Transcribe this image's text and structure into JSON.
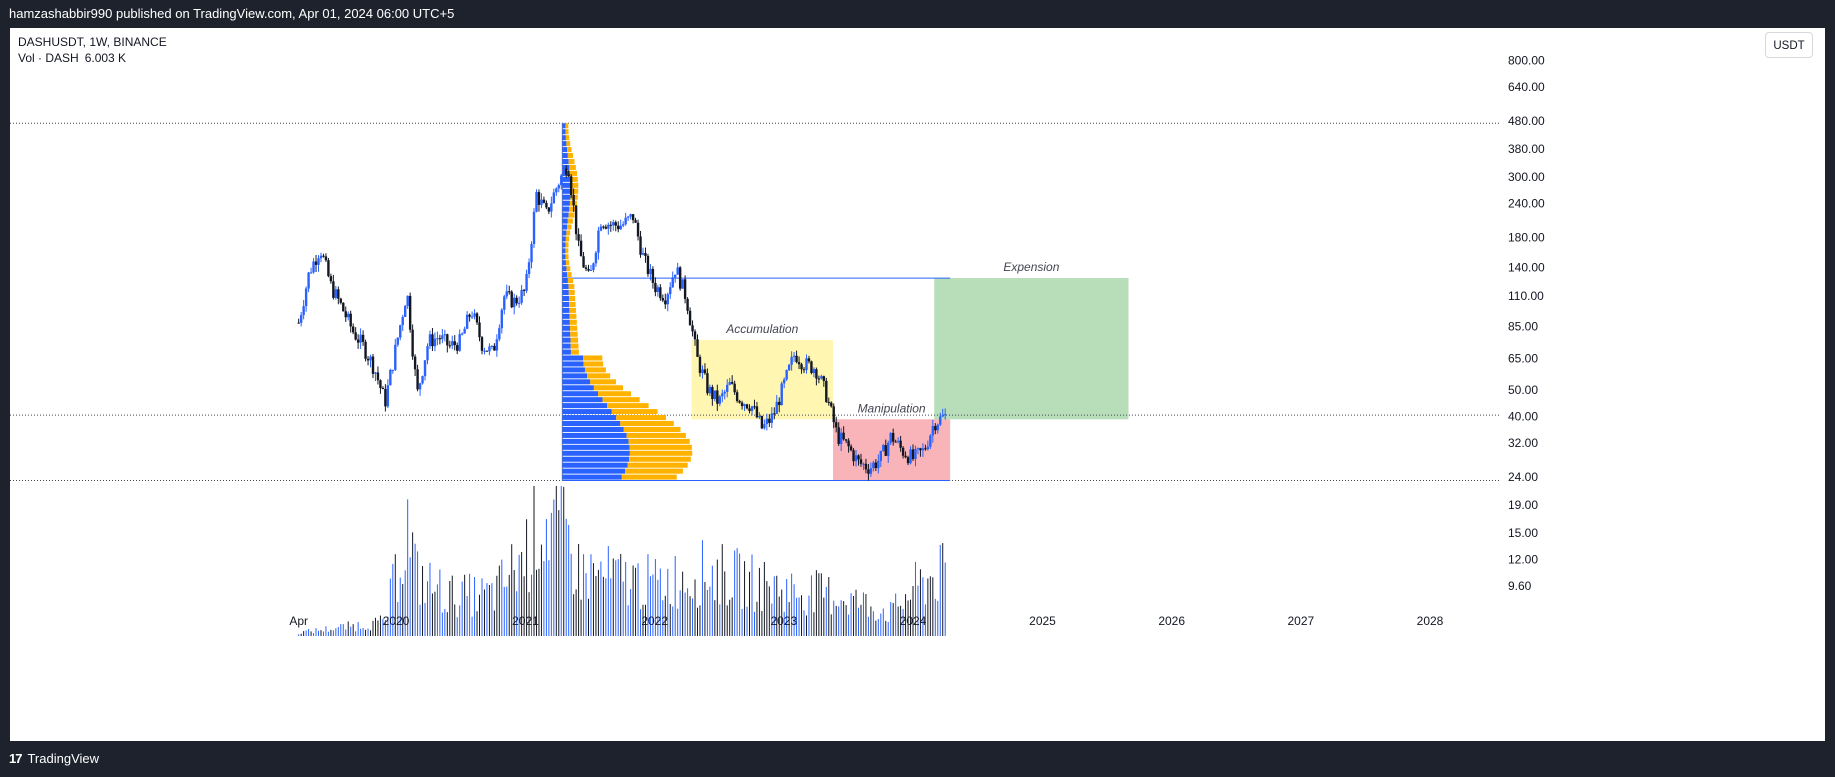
{
  "header": {
    "publisher_line": "hamzashabbir990 published on TradingView.com, Apr 01, 2024 06:00 UTC+5"
  },
  "legend": {
    "symbol_line": "DASHUSDT, 1W, BINANCE",
    "volume_label": "Vol · DASH",
    "volume_value": "6.003 K"
  },
  "currency_button": "USDT",
  "footer": {
    "brand": "TradingView",
    "logo_glyph": "17"
  },
  "chart_data": {
    "type": "candlestick",
    "symbol": "DASHUSDT",
    "interval": "1W",
    "exchange": "BINANCE",
    "y_scale": "log",
    "y_ticks": [
      "800.00",
      "640.00",
      "480.00",
      "380.00",
      "300.00",
      "240.00",
      "180.00",
      "140.00",
      "110.00",
      "85.00",
      "65.00",
      "50.00",
      "40.00",
      "32.00",
      "24.00",
      "19.00",
      "15.00",
      "12.00",
      "9.60"
    ],
    "y_tick_values": [
      800,
      640,
      480,
      380,
      300,
      240,
      180,
      140,
      110,
      85,
      65,
      50,
      40,
      32,
      24,
      19,
      15,
      12,
      9.6
    ],
    "x_ticks": [
      "Apr",
      "2020",
      "2021",
      "2022",
      "2023",
      "2024",
      "2025",
      "2026",
      "2027",
      "2028"
    ],
    "x_tick_dates": [
      "2019-04-01",
      "2020-01-01",
      "2021-01-01",
      "2022-01-01",
      "2023-01-01",
      "2024-01-01",
      "2025-01-01",
      "2026-01-01",
      "2027-01-01",
      "2028-01-01"
    ],
    "price_path": [
      [
        "2019-04-01",
        88
      ],
      [
        "2019-05-01",
        135
      ],
      [
        "2019-06-01",
        165
      ],
      [
        "2019-07-01",
        120
      ],
      [
        "2019-08-01",
        100
      ],
      [
        "2019-09-01",
        82
      ],
      [
        "2019-10-01",
        72
      ],
      [
        "2019-11-01",
        60
      ],
      [
        "2019-12-01",
        45
      ],
      [
        "2020-02-01",
        115
      ],
      [
        "2020-03-01",
        48
      ],
      [
        "2020-04-01",
        75
      ],
      [
        "2020-05-01",
        78
      ],
      [
        "2020-06-01",
        72
      ],
      [
        "2020-07-01",
        75
      ],
      [
        "2020-08-01",
        98
      ],
      [
        "2020-09-01",
        73
      ],
      [
        "2020-10-01",
        68
      ],
      [
        "2020-11-01",
        110
      ],
      [
        "2020-12-01",
        105
      ],
      [
        "2021-01-01",
        115
      ],
      [
        "2021-02-01",
        260
      ],
      [
        "2021-03-01",
        220
      ],
      [
        "2021-04-01",
        280
      ],
      [
        "2021-05-01",
        340
      ],
      [
        "2021-06-01",
        160
      ],
      [
        "2021-07-01",
        125
      ],
      [
        "2021-08-01",
        210
      ],
      [
        "2021-09-01",
        200
      ],
      [
        "2021-10-01",
        200
      ],
      [
        "2021-11-01",
        215
      ],
      [
        "2021-12-01",
        150
      ],
      [
        "2022-01-01",
        120
      ],
      [
        "2022-02-01",
        110
      ],
      [
        "2022-03-01",
        140
      ],
      [
        "2022-04-01",
        108
      ],
      [
        "2022-05-01",
        65
      ],
      [
        "2022-06-01",
        50
      ],
      [
        "2022-07-01",
        45
      ],
      [
        "2022-08-01",
        52
      ],
      [
        "2022-09-01",
        46
      ],
      [
        "2022-10-01",
        44
      ],
      [
        "2022-11-01",
        36
      ],
      [
        "2022-12-01",
        40
      ],
      [
        "2023-01-01",
        52
      ],
      [
        "2023-02-01",
        68
      ],
      [
        "2023-03-01",
        62
      ],
      [
        "2023-04-01",
        60
      ],
      [
        "2023-05-01",
        48
      ],
      [
        "2023-06-01",
        34
      ],
      [
        "2023-07-01",
        31
      ],
      [
        "2023-08-01",
        27
      ],
      [
        "2023-09-01",
        26
      ],
      [
        "2023-10-01",
        28
      ],
      [
        "2023-11-01",
        34
      ],
      [
        "2023-12-01",
        30
      ],
      [
        "2024-01-01",
        28
      ],
      [
        "2024-02-01",
        30
      ],
      [
        "2024-03-01",
        38
      ],
      [
        "2024-04-01",
        40
      ]
    ],
    "horizontal_levels": [
      {
        "price": 471,
        "style": "dotted"
      },
      {
        "price": 40.4,
        "style": "dotted"
      },
      {
        "price": 23.3,
        "style": "dotted"
      }
    ],
    "zones": [
      {
        "label": "Accumulation",
        "color": "#fff59d",
        "from": "2022-04-15",
        "to": "2023-05-20",
        "low": 39,
        "high": 76
      },
      {
        "label": "Manipulation",
        "color": "#f7a1a8",
        "from": "2023-05-20",
        "to": "2024-04-15",
        "low": 23.3,
        "high": 39
      },
      {
        "label": "Expension",
        "color": "#a5d6a7",
        "from": "2024-03-01",
        "to": "2025-09-01",
        "low": 39,
        "high": 128
      }
    ],
    "volume_profile": {
      "anchor": "2021-04-15",
      "range_high": 471,
      "range_low": 23.3,
      "top_line": 128,
      "buy_color": "#2962ff",
      "sell_color": "#ffb300"
    },
    "volume": {
      "label": "Vol · DASH",
      "last_value": "6.003 K",
      "peaks": [
        [
          "2019-04-01",
          0.03
        ],
        [
          "2019-12-01",
          0.12
        ],
        [
          "2020-02-01",
          0.95
        ],
        [
          "2020-03-01",
          0.5
        ],
        [
          "2020-06-01",
          0.35
        ],
        [
          "2020-10-01",
          0.35
        ],
        [
          "2021-01-01",
          0.7
        ],
        [
          "2021-02-01",
          1.0
        ],
        [
          "2021-04-01",
          0.95
        ],
        [
          "2021-05-01",
          0.8
        ],
        [
          "2021-06-01",
          0.55
        ],
        [
          "2022-01-01",
          0.45
        ],
        [
          "2022-06-01",
          0.55
        ],
        [
          "2023-01-01",
          0.4
        ],
        [
          "2023-06-01",
          0.35
        ],
        [
          "2023-11-01",
          0.2
        ],
        [
          "2024-01-01",
          0.4
        ],
        [
          "2024-03-01",
          0.52
        ]
      ]
    }
  }
}
